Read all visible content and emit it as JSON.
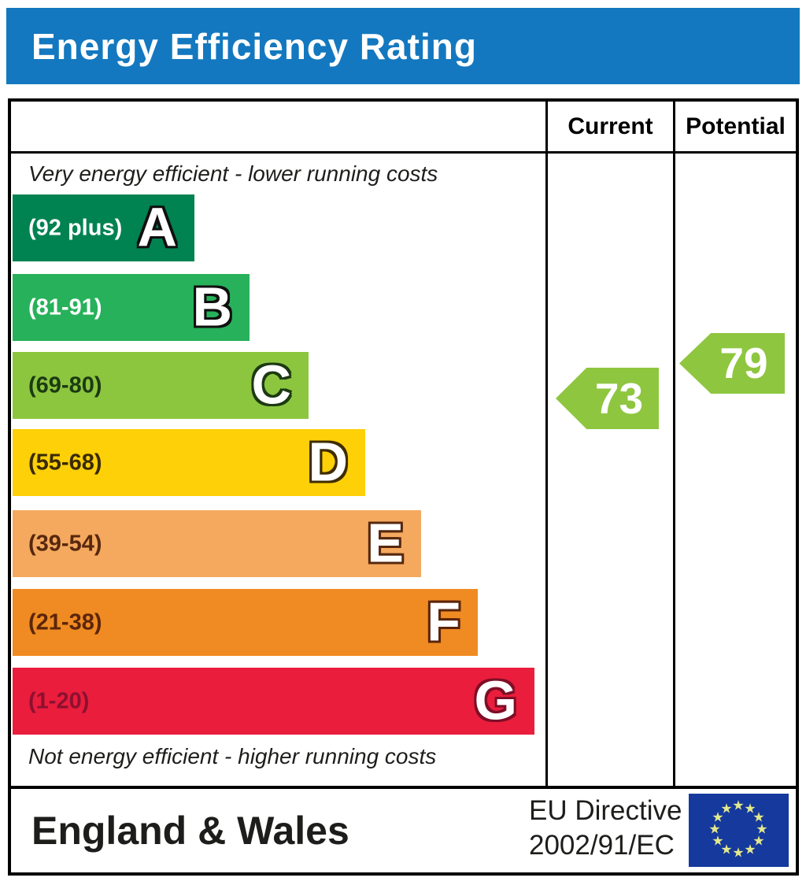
{
  "title": "Energy Efficiency Rating",
  "table": {
    "column_headers": {
      "current": "Current",
      "potential": "Potential"
    }
  },
  "notes": {
    "top": "Very energy efficient - lower running costs",
    "bottom": "Not energy efficient - higher running costs"
  },
  "bands": [
    {
      "letter": "A",
      "range": "(92 plus)",
      "color": "#008251"
    },
    {
      "letter": "B",
      "range": "(81-91)",
      "color": "#27b15a"
    },
    {
      "letter": "C",
      "range": "(69-80)",
      "color": "#8cc63f"
    },
    {
      "letter": "D",
      "range": "(55-68)",
      "color": "#fdd008"
    },
    {
      "letter": "E",
      "range": "(39-54)",
      "color": "#f5a95f"
    },
    {
      "letter": "F",
      "range": "(21-38)",
      "color": "#ef8b22"
    },
    {
      "letter": "G",
      "range": "(1-20)",
      "color": "#ea1d3d"
    }
  ],
  "ratings": {
    "current": {
      "value": "73",
      "band": "C",
      "arrow_color": "#8ec63f"
    },
    "potential": {
      "value": "79",
      "band": "C",
      "arrow_color": "#8ec63f"
    }
  },
  "footer": {
    "region": "England & Wales",
    "directive_line1": "EU Directive",
    "directive_line2": "2002/91/EC"
  },
  "eu_flag": {
    "bg": "#16399d",
    "star_color": "#e3e98c",
    "star_count": 12
  },
  "colors": {
    "header_bar": "#1378bf",
    "border": "#000000"
  },
  "chart_data": {
    "type": "bar",
    "title": "Energy Efficiency Rating",
    "categories": [
      "A",
      "B",
      "C",
      "D",
      "E",
      "F",
      "G"
    ],
    "band_ranges": [
      "92 plus",
      "81-91",
      "69-80",
      "55-68",
      "39-54",
      "21-38",
      "1-20"
    ],
    "band_colors": [
      "#008251",
      "#27b15a",
      "#8cc63f",
      "#fdd008",
      "#f5a95f",
      "#ef8b22",
      "#ea1d3d"
    ],
    "series": [
      {
        "name": "Current",
        "values": [
          73
        ],
        "band": "C"
      },
      {
        "name": "Potential",
        "values": [
          79
        ],
        "band": "C"
      }
    ],
    "scale": [
      1,
      100
    ],
    "annotations": [
      "Very energy efficient - lower running costs",
      "Not energy efficient - higher running costs",
      "England & Wales",
      "EU Directive 2002/91/EC"
    ],
    "legend_position": "none",
    "grid": false
  }
}
